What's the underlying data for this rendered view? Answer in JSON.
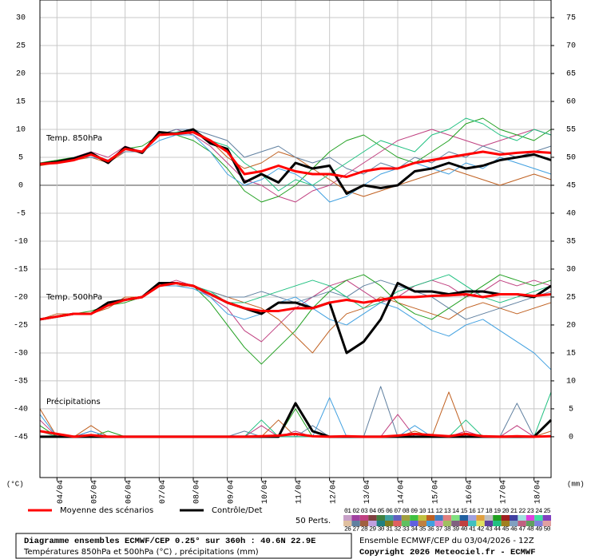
{
  "chart_data": [
    {
      "type": "line",
      "title": "Temp. 850hPa",
      "ylabel": "(°C)",
      "y2label": "(mm)",
      "x": [
        0,
        12,
        24,
        36,
        48,
        60,
        72,
        84,
        96,
        108,
        120,
        132,
        144,
        156,
        168,
        180,
        192,
        204,
        216,
        228,
        240,
        252,
        264,
        276,
        288,
        300,
        312,
        324,
        336,
        348,
        360
      ],
      "xlim": [
        0,
        360
      ],
      "xticks": [
        {
          "value": 12,
          "label": "04/04"
        },
        {
          "value": 36,
          "label": "05/04"
        },
        {
          "value": 60,
          "label": "06/04"
        },
        {
          "value": 84,
          "label": "07/04"
        },
        {
          "value": 108,
          "label": "08/04"
        },
        {
          "value": 132,
          "label": "09/04"
        },
        {
          "value": 156,
          "label": "10/04"
        },
        {
          "value": 180,
          "label": "11/04"
        },
        {
          "value": 204,
          "label": "12/04"
        },
        {
          "value": 228,
          "label": "13/04"
        },
        {
          "value": 252,
          "label": "14/04"
        },
        {
          "value": 276,
          "label": "15/04"
        },
        {
          "value": 300,
          "label": "16/04"
        },
        {
          "value": 324,
          "label": "17/04"
        },
        {
          "value": 348,
          "label": "18/04"
        }
      ],
      "ylim": [
        -52.3,
        33.15
      ],
      "yticks": [
        30,
        25,
        20,
        15,
        10,
        5,
        0,
        -5,
        -10,
        -15,
        -20,
        -25,
        -30,
        -35,
        -40,
        -45
      ],
      "y2lim": [
        -7.3,
        78.15
      ],
      "y2ticks": [
        75,
        70,
        65,
        60,
        55,
        50,
        45,
        40,
        35,
        30,
        25,
        20,
        15,
        10,
        5,
        0
      ],
      "grid": true,
      "perturbation_legend": {
        "title": "50 Perts.",
        "labels": [
          "01",
          "02",
          "03",
          "04",
          "05",
          "06",
          "07",
          "08",
          "09",
          "10",
          "11",
          "12",
          "13",
          "14",
          "15",
          "16",
          "17",
          "18",
          "19",
          "20",
          "21",
          "22",
          "23",
          "24",
          "25",
          "26",
          "27",
          "28",
          "29",
          "30",
          "31",
          "32",
          "33",
          "34",
          "35",
          "36",
          "37",
          "38",
          "39",
          "40",
          "41",
          "42",
          "43",
          "44",
          "45",
          "46",
          "47",
          "48",
          "49",
          "50"
        ],
        "colors": [
          "#c8a0c8",
          "#a040a0",
          "#c04080",
          "#804040",
          "#408040",
          "#40a0a0",
          "#6060c0",
          "#a0a040",
          "#40c040",
          "#c0c040",
          "#c06020",
          "#4080c0",
          "#e08080",
          "#80e080",
          "#2060a0",
          "#a0a0e0",
          "#e0a040",
          "#c0c0c0",
          "#20a020",
          "#a02020",
          "#4040a0",
          "#a0e0e0",
          "#e040e0",
          "#40e0a0",
          "#8040c0",
          "#e0c0a0",
          "#6080a0",
          "#a06040",
          "#c0a0e0",
          "#208080",
          "#808020",
          "#e06060",
          "#60c060",
          "#6060e0",
          "#c08040",
          "#40a0e0",
          "#e080c0",
          "#a0c060",
          "#806080",
          "#c04040",
          "#40c0c0",
          "#e0e060",
          "#6040a0",
          "#20c080",
          "#a08020",
          "#80a0c0",
          "#c06080",
          "#60a060",
          "#8080e0",
          "#e0a0a0"
        ]
      },
      "series": [
        {
          "name": "Moyenne des scénarios",
          "color": "#ff0000",
          "values": [
            3.8,
            4,
            4.5,
            5.5,
            4.3,
            6.5,
            6,
            9,
            9.2,
            9.5,
            8,
            6,
            2,
            2.5,
            3.5,
            2.5,
            2,
            2,
            1.5,
            2.5,
            3,
            3,
            4,
            4.5,
            5,
            5.5,
            6,
            5.5,
            5.8,
            6,
            5.8
          ]
        },
        {
          "name": "Contrôle/Det",
          "color": "#000000",
          "values": [
            3.8,
            4.2,
            4.8,
            5.8,
            4,
            6.8,
            5.8,
            9.5,
            9.2,
            10,
            7.5,
            6.5,
            0.5,
            2,
            0.5,
            4,
            3,
            3.5,
            -1.5,
            0,
            -0.5,
            0,
            2.5,
            3,
            4,
            3,
            3.5,
            4.5,
            5,
            5.5,
            4.5
          ]
        },
        {
          "name": "03",
          "color": "#c04080",
          "values": [
            4,
            4,
            5,
            6,
            5,
            7,
            6,
            9,
            10,
            9,
            7,
            4,
            1,
            0,
            -2,
            -3,
            -1,
            0,
            2,
            4,
            6,
            8,
            9,
            10,
            9,
            8,
            7,
            8,
            9,
            10,
            9
          ]
        },
        {
          "name": "11",
          "color": "#c06020",
          "values": [
            3.5,
            4,
            4.5,
            5,
            4,
            6,
            6,
            9,
            9,
            10,
            8,
            5,
            3,
            4,
            6,
            5,
            3,
            1,
            -1,
            -2,
            -1,
            0,
            1,
            2,
            3,
            2,
            1,
            0,
            1,
            2,
            1
          ]
        },
        {
          "name": "19",
          "color": "#20a020",
          "values": [
            4,
            4.5,
            5,
            5.5,
            4,
            6.5,
            7,
            9,
            9,
            8,
            6,
            3,
            -1,
            -3,
            -2,
            0,
            3,
            6,
            8,
            9,
            7,
            5,
            4,
            6,
            8,
            11,
            12,
            10,
            9,
            8,
            10
          ]
        },
        {
          "name": "27",
          "color": "#6080a0",
          "values": [
            3.8,
            4,
            4.5,
            5.5,
            4.5,
            6,
            6,
            9,
            10,
            10,
            9,
            8,
            5,
            6,
            7,
            5,
            4,
            5,
            3,
            2,
            4,
            3,
            5,
            4,
            6,
            5,
            7,
            6,
            5,
            6,
            7
          ]
        },
        {
          "name": "36",
          "color": "#40a0e0",
          "values": [
            4,
            4,
            5,
            5,
            4.5,
            6.5,
            6,
            8,
            9,
            9,
            6,
            2,
            0,
            1,
            3,
            2,
            0,
            -3,
            -2,
            0,
            2,
            3,
            4,
            3,
            2,
            4,
            3,
            5,
            4,
            3,
            2
          ]
        },
        {
          "name": "44",
          "color": "#20c080",
          "values": [
            3.7,
            4.2,
            4.8,
            5.8,
            4.3,
            6.5,
            6,
            9,
            9.5,
            10,
            8,
            7,
            4,
            2,
            -1,
            1,
            0,
            2,
            4,
            6,
            8,
            7,
            6,
            9,
            10,
            12,
            11,
            9,
            8,
            10,
            9
          ]
        }
      ]
    },
    {
      "type": "line",
      "title": "Temp. 500hPa",
      "series": [
        {
          "name": "Moyenne des scénarios",
          "color": "#ff0000",
          "values": [
            -24,
            -23.5,
            -23,
            -23,
            -21.5,
            -20.5,
            -20,
            -18,
            -17.5,
            -18,
            -19.5,
            -21,
            -22,
            -22.5,
            -22.5,
            -22,
            -22,
            -21,
            -20.5,
            -21,
            -20.5,
            -20,
            -20,
            -19.8,
            -19.7,
            -19.5,
            -20,
            -19.5,
            -19.5,
            -19.8,
            -19.5
          ]
        },
        {
          "name": "Contrôle/Det",
          "color": "#000000",
          "values": [
            -24,
            -23.5,
            -23,
            -23,
            -21,
            -20.5,
            -20,
            -17.5,
            -17.5,
            -18,
            -19.5,
            -21,
            -22,
            -23,
            -21,
            -21,
            -22,
            -21,
            -30,
            -28,
            -24,
            -17.5,
            -19,
            -19,
            -19.5,
            -19,
            -19,
            -19.5,
            -19.5,
            -20,
            -18
          ]
        },
        {
          "name": "03",
          "color": "#c04080",
          "values": [
            -24,
            -23.5,
            -23,
            -23,
            -21,
            -20.5,
            -20,
            -18,
            -17,
            -18,
            -20,
            -22,
            -26,
            -28,
            -25,
            -22,
            -20,
            -18,
            -17,
            -19,
            -21,
            -20,
            -18,
            -17,
            -18,
            -20,
            -19,
            -17,
            -18,
            -17,
            -18
          ]
        },
        {
          "name": "11",
          "color": "#c06020",
          "values": [
            -24,
            -23,
            -23,
            -23,
            -22,
            -20,
            -20,
            -18,
            -18,
            -18,
            -19,
            -20,
            -21,
            -22,
            -24,
            -27,
            -30,
            -26,
            -23,
            -22,
            -20,
            -21,
            -22,
            -23,
            -24,
            -22,
            -21,
            -22,
            -23,
            -22,
            -21
          ]
        },
        {
          "name": "19",
          "color": "#20a020",
          "values": [
            -24,
            -23.5,
            -23,
            -22.5,
            -21.5,
            -21,
            -20,
            -17.5,
            -17.5,
            -18,
            -21,
            -25,
            -29,
            -32,
            -29,
            -26,
            -22,
            -19,
            -17,
            -16,
            -18,
            -21,
            -23,
            -24,
            -22,
            -20,
            -18,
            -16,
            -17,
            -18,
            -17
          ]
        },
        {
          "name": "27",
          "color": "#6080a0",
          "values": [
            -24,
            -23.5,
            -23,
            -23,
            -21,
            -20.5,
            -20,
            -18,
            -17.5,
            -18,
            -19,
            -20,
            -20,
            -19,
            -20,
            -21,
            -20,
            -19,
            -20,
            -18,
            -17,
            -18,
            -19,
            -20,
            -22,
            -24,
            -23,
            -22,
            -21,
            -20,
            -19
          ]
        },
        {
          "name": "36",
          "color": "#40a0e0",
          "values": [
            -24,
            -23.5,
            -23,
            -23,
            -21.5,
            -20.5,
            -20,
            -18,
            -18,
            -18.5,
            -20,
            -23,
            -24,
            -23,
            -21,
            -20,
            -22,
            -24,
            -25,
            -23,
            -21,
            -22,
            -24,
            -26,
            -27,
            -25,
            -24,
            -26,
            -28,
            -30,
            -33
          ]
        },
        {
          "name": "44",
          "color": "#20c080",
          "values": [
            -24,
            -23.5,
            -23,
            -23,
            -21.5,
            -20.5,
            -20,
            -17.5,
            -17.5,
            -18,
            -19,
            -21,
            -21,
            -20,
            -19,
            -18,
            -17,
            -18,
            -20,
            -22,
            -21,
            -19,
            -18,
            -17,
            -16,
            -18,
            -20,
            -21,
            -20,
            -19,
            -18
          ]
        }
      ]
    },
    {
      "type": "line",
      "title": "Précipitations",
      "series": [
        {
          "name": "Moyenne des scénarios",
          "color": "#ff0000",
          "axis": "y2",
          "values": [
            1,
            0.5,
            0,
            0.3,
            0,
            0,
            0,
            0,
            0,
            0,
            0,
            0,
            0,
            0.1,
            0.2,
            0.5,
            0.1,
            0,
            0.1,
            0,
            0,
            0.2,
            0.5,
            0.3,
            0.1,
            0.5,
            0.1,
            0,
            0.1,
            0,
            0.1
          ]
        },
        {
          "name": "Contrôle/Det",
          "color": "#000000",
          "axis": "y2",
          "values": [
            0,
            0,
            0,
            0,
            0,
            0,
            0,
            0,
            0,
            0,
            0,
            0,
            0,
            0,
            0,
            6,
            1,
            0,
            0,
            0,
            0,
            0,
            0,
            0,
            0,
            0,
            0,
            0,
            0,
            0,
            3
          ]
        },
        {
          "name": "03",
          "color": "#c04080",
          "axis": "y2",
          "values": [
            3,
            0,
            0,
            1,
            0,
            0,
            0,
            0,
            0,
            0,
            0,
            0,
            0,
            2,
            0,
            1,
            0,
            0,
            0,
            0,
            0,
            4,
            0,
            0,
            0,
            1,
            0,
            0,
            2,
            0,
            0
          ]
        },
        {
          "name": "11",
          "color": "#c06020",
          "axis": "y2",
          "values": [
            5,
            0,
            0,
            2,
            0,
            0,
            0,
            0,
            0,
            0,
            0,
            0,
            0,
            0,
            3,
            0,
            0,
            0,
            0,
            0,
            0,
            0,
            1,
            0,
            8,
            0,
            0,
            0,
            0,
            0,
            1
          ]
        },
        {
          "name": "19",
          "color": "#20a020",
          "axis": "y2",
          "values": [
            2,
            0,
            0,
            0,
            1,
            0,
            0,
            0,
            0,
            0,
            0,
            0,
            0,
            0,
            0,
            5,
            0,
            0,
            0,
            0,
            0,
            0,
            0,
            0,
            0,
            0,
            0,
            0,
            0,
            0,
            0
          ]
        },
        {
          "name": "27",
          "color": "#6080a0",
          "axis": "y2",
          "values": [
            0,
            0,
            0,
            0,
            0,
            0,
            0,
            0,
            0,
            0,
            0,
            0,
            1,
            0,
            0,
            0,
            2,
            0,
            0,
            0,
            9,
            0,
            0,
            0,
            0,
            0,
            0,
            0,
            6,
            0,
            0
          ]
        },
        {
          "name": "36",
          "color": "#40a0e0",
          "axis": "y2",
          "values": [
            4,
            0,
            0,
            1,
            0,
            0,
            0,
            0,
            0,
            0,
            0,
            0,
            0,
            0,
            0,
            0,
            0,
            7,
            0,
            0,
            0,
            0,
            2,
            0,
            0,
            0,
            0,
            0,
            0,
            0,
            0
          ]
        },
        {
          "name": "44",
          "color": "#20c080",
          "axis": "y2",
          "values": [
            1,
            0,
            0,
            0,
            0,
            0,
            0,
            0,
            0,
            0,
            0,
            0,
            0,
            3,
            0,
            0,
            0,
            0,
            0,
            0,
            0,
            0,
            0,
            0,
            0,
            3,
            0,
            0,
            0,
            0,
            8
          ]
        }
      ]
    }
  ],
  "footer": {
    "left": [
      "Diagramme ensembles ECMWF/CEP 0.25° sur 360h : 40.6N 22.9E",
      "Températures 850hPa et 500hPa (°C) , précipitations (mm)"
    ],
    "right": [
      "Ensemble ECMWF/CEP du 03/04/2026 - 12Z",
      "Copyright 2026 Meteociel.fr - ECMWF"
    ]
  }
}
